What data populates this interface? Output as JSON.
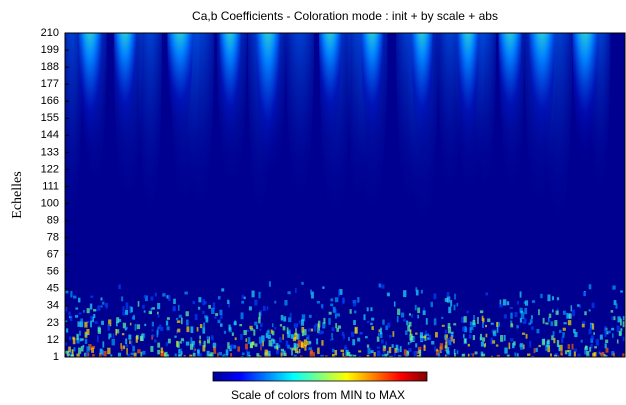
{
  "chart_data": {
    "type": "scalogram",
    "title": "Ca,b Coefficients  - Coloration mode : init + by scale + abs",
    "y_label": "Echelles",
    "colorbar_label": "Scale of colors from MIN to MAX",
    "ylim": [
      1,
      210
    ],
    "yticks": [
      1,
      12,
      23,
      34,
      45,
      56,
      67,
      78,
      89,
      100,
      111,
      122,
      133,
      144,
      155,
      166,
      177,
      188,
      199,
      210
    ]
  }
}
